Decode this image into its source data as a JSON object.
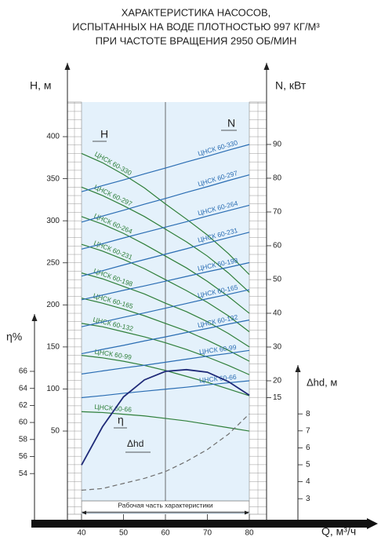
{
  "chart_data": {
    "type": "line",
    "title": [
      "ХАРАКТЕРИСТИКА НАСОСОВ,",
      "ИСПЫТАННЫХ НА ВОДЕ ПЛОТНОСТЬЮ 997 КГ/М³",
      "ПРИ ЧАСТОТЕ ВРАЩЕНИЯ 2950 ОБ/МИН"
    ],
    "x_label": "Q, м³/ч",
    "y_label": "H, м",
    "y2_label": "N, кВт",
    "y3_label": "η%",
    "y4_label": "Δhd, м",
    "annotations": [
      "H",
      "N",
      "η",
      "Δhd"
    ],
    "working_range_label": "Рабочая часть характеристики",
    "x": [
      40,
      45,
      50,
      55,
      60,
      65,
      70,
      75,
      80
    ],
    "xlim": [
      40,
      80
    ],
    "xticks": [
      40,
      50,
      60,
      70,
      80
    ],
    "ylim": [
      0,
      440
    ],
    "yticks": [
      50,
      100,
      150,
      200,
      250,
      300,
      350,
      400
    ],
    "y2lim": [
      0,
      100
    ],
    "y2ticks": [
      15,
      20,
      30,
      40,
      50,
      60,
      70,
      80,
      90
    ],
    "y3lim": [
      50,
      70
    ],
    "y3ticks": [
      54,
      56,
      58,
      60,
      62,
      64,
      66
    ],
    "y4lim": [
      2,
      10
    ],
    "y4ticks": [
      3,
      4,
      5,
      6,
      7,
      8
    ],
    "series": [
      {
        "name": "ЦНСК 60-330",
        "color": "#2f7f3a",
        "axis": "y",
        "values": [
          380,
          369,
          355,
          339,
          320,
          302,
          283,
          261,
          236
        ]
      },
      {
        "name": "ЦНСК 60-297",
        "color": "#2f7f3a",
        "axis": "y",
        "values": [
          340,
          330,
          318,
          305,
          290,
          275,
          258,
          238,
          215
        ]
      },
      {
        "name": "ЦНСК 60-264",
        "color": "#2f7f3a",
        "axis": "y",
        "values": [
          305,
          296,
          285,
          272,
          258,
          244,
          228,
          210,
          190
        ]
      },
      {
        "name": "ЦНСК 60-231",
        "color": "#2f7f3a",
        "axis": "y",
        "values": [
          272,
          264,
          254,
          243,
          230,
          217,
          203,
          187,
          168
        ]
      },
      {
        "name": "ЦНСК 60-198",
        "color": "#2f7f3a",
        "axis": "y",
        "values": [
          238,
          231,
          222,
          213,
          202,
          192,
          180,
          166,
          150
        ]
      },
      {
        "name": "ЦНСК 60-165",
        "color": "#2f7f3a",
        "axis": "y",
        "values": [
          208,
          202,
          195,
          187,
          178,
          169,
          158,
          146,
          133
        ]
      },
      {
        "name": "ЦНСК 60-132",
        "color": "#2f7f3a",
        "axis": "y",
        "values": [
          178,
          174,
          168,
          162,
          155,
          147,
          138,
          128,
          117
        ]
      },
      {
        "name": "ЦНСК 60-99",
        "color": "#2f7f3a",
        "axis": "y",
        "values": [
          140,
          137,
          133,
          128,
          122,
          115,
          108,
          100,
          92
        ]
      },
      {
        "name": "ЦНСК 60-66",
        "color": "#2f7f3a",
        "axis": "y",
        "values": [
          73,
          72,
          70,
          68,
          65,
          62,
          58,
          54,
          50
        ]
      },
      {
        "name": "ЦНСК 60-330",
        "color": "#2a6db3",
        "axis": "y2",
        "values": [
          76,
          77.8,
          79.5,
          81.3,
          83,
          84.8,
          86.5,
          88.3,
          90
        ]
      },
      {
        "name": "ЦНСК 60-297",
        "color": "#2a6db3",
        "axis": "y2",
        "values": [
          67,
          68.8,
          70.5,
          72.3,
          74,
          75.8,
          77.5,
          79.3,
          81
        ]
      },
      {
        "name": "ЦНСК 60-264",
        "color": "#2a6db3",
        "axis": "y2",
        "values": [
          59,
          60.6,
          62.3,
          63.9,
          65.5,
          67.1,
          68.8,
          70.4,
          72
        ]
      },
      {
        "name": "ЦНСК 60-231",
        "color": "#2a6db3",
        "axis": "y2",
        "values": [
          51,
          52.6,
          54.3,
          55.9,
          57.5,
          59.1,
          60.8,
          62.4,
          64
        ]
      },
      {
        "name": "ЦНСК 60-198",
        "color": "#2a6db3",
        "axis": "y2",
        "values": [
          44,
          45.4,
          46.8,
          48.1,
          49.5,
          50.9,
          52.3,
          53.6,
          55
        ]
      },
      {
        "name": "ЦНСК 60-165",
        "color": "#2a6db3",
        "axis": "y2",
        "values": [
          36,
          37.4,
          38.8,
          40.1,
          41.5,
          42.9,
          44.3,
          45.6,
          47
        ]
      },
      {
        "name": "ЦНСК 60-132",
        "color": "#2a6db3",
        "axis": "y2",
        "values": [
          28,
          29.3,
          30.5,
          31.8,
          33,
          34.3,
          35.5,
          36.8,
          38
        ]
      },
      {
        "name": "ЦНСК 60-99",
        "color": "#2a6db3",
        "axis": "y2",
        "values": [
          22,
          22.9,
          23.8,
          24.6,
          25.5,
          26.4,
          27.3,
          28.1,
          29
        ]
      },
      {
        "name": "ЦНСК 60-66",
        "color": "#2a6db3",
        "axis": "y2",
        "values": [
          15,
          15.6,
          16.3,
          16.9,
          17.5,
          18.1,
          18.8,
          19.4,
          20
        ]
      },
      {
        "color": "#1f2a78",
        "axis": "y3",
        "values": [
          55,
          59.5,
          63,
          65,
          66,
          66.2,
          65.9,
          64.8,
          63.2
        ]
      },
      {
        "color": "#6e6e6e",
        "axis": "y4",
        "dashed": true,
        "values": [
          3.5,
          3.6,
          3.9,
          4.2,
          4.6,
          5.2,
          5.9,
          6.8,
          8
        ]
      }
    ]
  }
}
